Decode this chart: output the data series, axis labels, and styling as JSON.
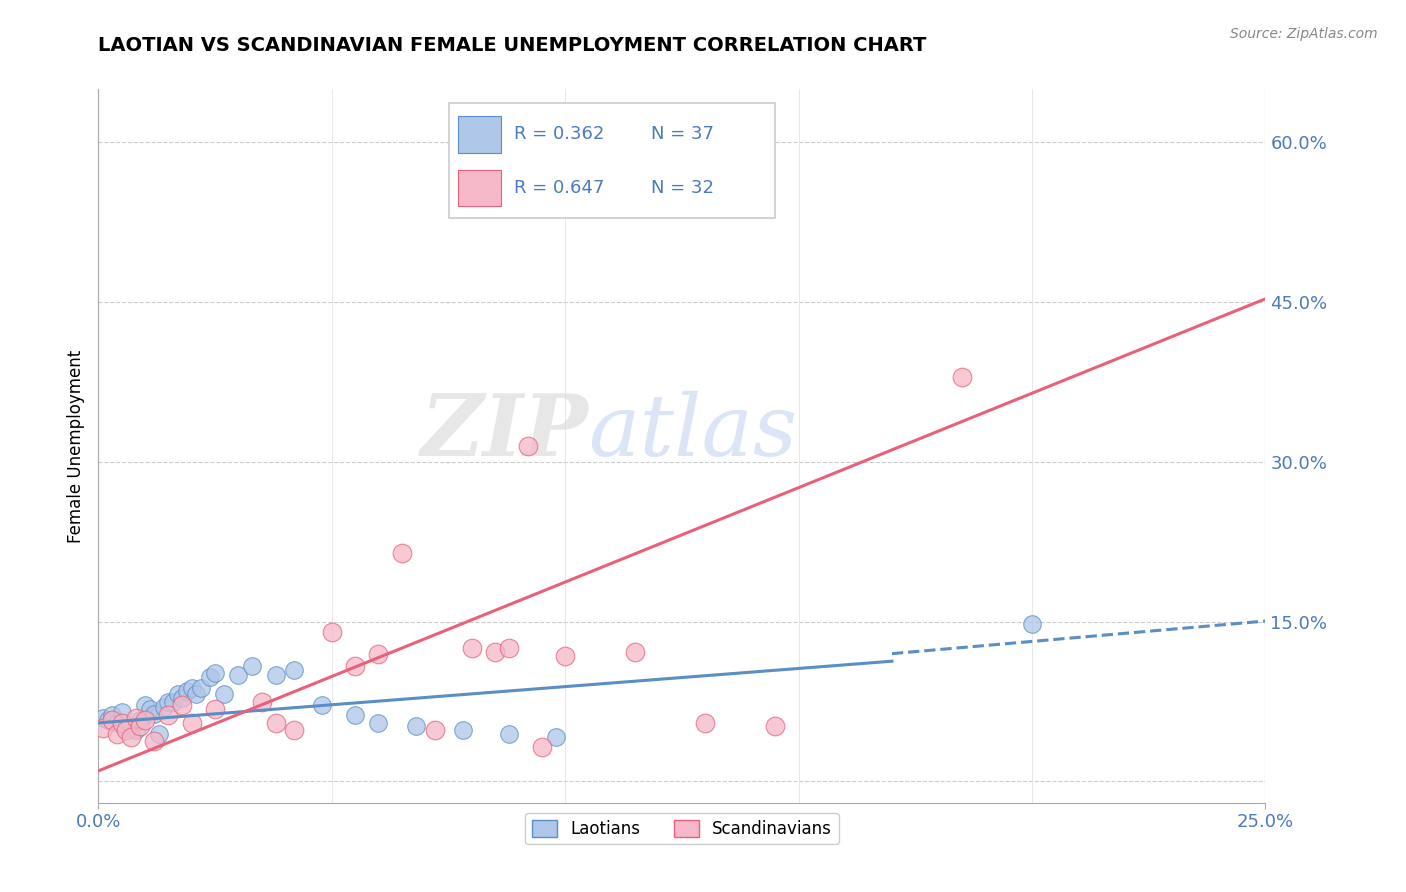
{
  "title": "LAOTIAN VS SCANDINAVIAN FEMALE UNEMPLOYMENT CORRELATION CHART",
  "source": "Source: ZipAtlas.com",
  "xlim": [
    0.0,
    0.25
  ],
  "ylim": [
    -0.02,
    0.65
  ],
  "yticks": [
    0.0,
    0.15,
    0.3,
    0.45,
    0.6
  ],
  "xticks": [
    0.0,
    0.25
  ],
  "laotian_color": "#aec6e8",
  "scandinavian_color": "#f4b8c8",
  "trend_laotian_color": "#5b8ec4",
  "trend_scandinavian_color": "#e8607a",
  "legend_text_color": "#4a7abf",
  "R_laotian": 0.362,
  "N_laotian": 37,
  "R_scandinavian": 0.647,
  "N_scandinavian": 32,
  "watermark_zip": "ZIP",
  "watermark_atlas": "atlas",
  "laotian_points": [
    [
      0.001,
      0.06
    ],
    [
      0.002,
      0.058
    ],
    [
      0.003,
      0.062
    ],
    [
      0.004,
      0.055
    ],
    [
      0.005,
      0.065
    ],
    [
      0.006,
      0.05
    ],
    [
      0.007,
      0.052
    ],
    [
      0.008,
      0.048
    ],
    [
      0.009,
      0.058
    ],
    [
      0.01,
      0.072
    ],
    [
      0.011,
      0.068
    ],
    [
      0.012,
      0.063
    ],
    [
      0.013,
      0.045
    ],
    [
      0.014,
      0.07
    ],
    [
      0.015,
      0.075
    ],
    [
      0.016,
      0.075
    ],
    [
      0.017,
      0.082
    ],
    [
      0.018,
      0.078
    ],
    [
      0.019,
      0.085
    ],
    [
      0.02,
      0.088
    ],
    [
      0.021,
      0.082
    ],
    [
      0.022,
      0.088
    ],
    [
      0.024,
      0.098
    ],
    [
      0.025,
      0.102
    ],
    [
      0.027,
      0.082
    ],
    [
      0.03,
      0.1
    ],
    [
      0.033,
      0.108
    ],
    [
      0.038,
      0.1
    ],
    [
      0.042,
      0.105
    ],
    [
      0.048,
      0.072
    ],
    [
      0.055,
      0.062
    ],
    [
      0.06,
      0.055
    ],
    [
      0.068,
      0.052
    ],
    [
      0.078,
      0.048
    ],
    [
      0.088,
      0.045
    ],
    [
      0.098,
      0.042
    ],
    [
      0.2,
      0.148
    ]
  ],
  "scandinavian_points": [
    [
      0.001,
      0.05
    ],
    [
      0.003,
      0.058
    ],
    [
      0.004,
      0.045
    ],
    [
      0.005,
      0.055
    ],
    [
      0.006,
      0.048
    ],
    [
      0.007,
      0.042
    ],
    [
      0.008,
      0.06
    ],
    [
      0.009,
      0.052
    ],
    [
      0.01,
      0.058
    ],
    [
      0.012,
      0.038
    ],
    [
      0.015,
      0.062
    ],
    [
      0.018,
      0.072
    ],
    [
      0.02,
      0.055
    ],
    [
      0.025,
      0.068
    ],
    [
      0.035,
      0.075
    ],
    [
      0.038,
      0.055
    ],
    [
      0.042,
      0.048
    ],
    [
      0.05,
      0.14
    ],
    [
      0.055,
      0.108
    ],
    [
      0.06,
      0.12
    ],
    [
      0.065,
      0.215
    ],
    [
      0.072,
      0.048
    ],
    [
      0.08,
      0.125
    ],
    [
      0.085,
      0.122
    ],
    [
      0.088,
      0.125
    ],
    [
      0.092,
      0.315
    ],
    [
      0.095,
      0.032
    ],
    [
      0.1,
      0.118
    ],
    [
      0.115,
      0.122
    ],
    [
      0.13,
      0.055
    ],
    [
      0.145,
      0.052
    ],
    [
      0.185,
      0.38
    ]
  ]
}
